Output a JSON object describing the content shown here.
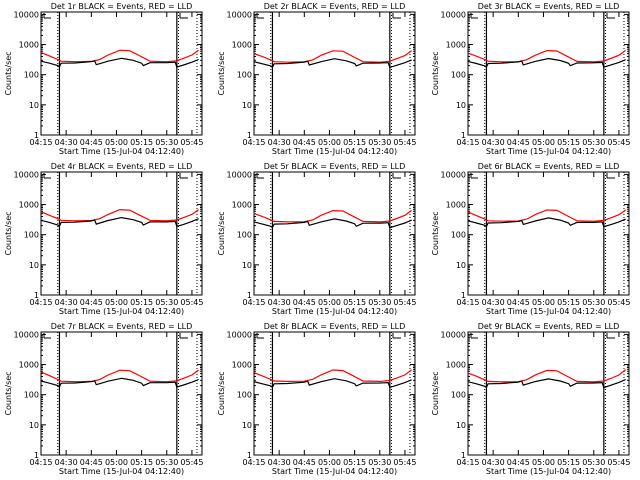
{
  "common": {
    "xlabel": "Start Time (15-Jul-04 04:12:40)",
    "ylabel": "Counts/sec",
    "xticks": [
      "04:15",
      "04:30",
      "04:45",
      "05:00",
      "05:15",
      "05:30",
      "05:45"
    ],
    "yticks": [
      "1",
      "10",
      "100",
      "1000",
      "10000"
    ],
    "colors": {
      "events": "#000000",
      "lld": "#ff0000"
    }
  },
  "chart_data": [
    {
      "type": "line",
      "title": "Det 1r BLACK = Events, RED = LLD",
      "xlim": [
        "04:15",
        "05:51"
      ],
      "ylim": [
        1,
        12000
      ],
      "yscale": "log",
      "markers": {
        "solid": [
          "04:26",
          "05:36"
        ],
        "dotted": [
          "04:25",
          "05:37",
          "05:48"
        ]
      },
      "series": [
        {
          "name": "LLD",
          "color": "#ff0000",
          "x": [
            "04:15",
            "04:20",
            "04:25",
            "04:27",
            "04:35",
            "04:45",
            "04:50",
            "04:55",
            "05:02",
            "05:08",
            "05:14",
            "05:20",
            "05:30",
            "05:36",
            "05:40",
            "05:45",
            "05:49"
          ],
          "y": [
            550,
            420,
            320,
            280,
            270,
            275,
            320,
            450,
            650,
            620,
            420,
            280,
            270,
            290,
            350,
            450,
            650
          ]
        },
        {
          "name": "Events",
          "color": "#000000",
          "x": [
            "04:15",
            "04:20",
            "04:25",
            "04:26",
            "04:27",
            "04:35",
            "04:45",
            "04:47",
            "04:48",
            "04:55",
            "05:03",
            "05:10",
            "05:15",
            "05:16",
            "05:20",
            "05:30",
            "05:35",
            "05:36",
            "05:40",
            "05:45",
            "05:49"
          ],
          "y": [
            280,
            240,
            200,
            180,
            240,
            245,
            270,
            290,
            215,
            280,
            350,
            300,
            240,
            200,
            250,
            250,
            260,
            180,
            210,
            260,
            320
          ]
        }
      ]
    },
    {
      "type": "line",
      "title": "Det 2r BLACK = Events, RED = LLD",
      "xlim": [
        "04:15",
        "05:51"
      ],
      "ylim": [
        1,
        12000
      ],
      "yscale": "log",
      "markers": {
        "solid": [
          "04:26",
          "05:36"
        ],
        "dotted": [
          "04:25",
          "05:37",
          "05:48"
        ]
      },
      "series": [
        {
          "name": "LLD",
          "color": "#ff0000",
          "x": [
            "04:15",
            "04:20",
            "04:25",
            "04:27",
            "04:35",
            "04:45",
            "04:50",
            "04:55",
            "05:02",
            "05:08",
            "05:14",
            "05:20",
            "05:30",
            "05:36",
            "05:40",
            "05:45",
            "05:49"
          ],
          "y": [
            500,
            400,
            310,
            270,
            260,
            270,
            310,
            440,
            620,
            600,
            400,
            270,
            260,
            280,
            340,
            430,
            620
          ]
        },
        {
          "name": "Events",
          "color": "#000000",
          "x": [
            "04:15",
            "04:20",
            "04:25",
            "04:26",
            "04:27",
            "04:35",
            "04:45",
            "04:47",
            "04:48",
            "04:55",
            "05:03",
            "05:10",
            "05:15",
            "05:16",
            "05:20",
            "05:30",
            "05:35",
            "05:36",
            "05:40",
            "05:45",
            "05:49"
          ],
          "y": [
            270,
            230,
            195,
            175,
            230,
            235,
            260,
            280,
            210,
            270,
            340,
            290,
            235,
            195,
            240,
            245,
            250,
            175,
            205,
            250,
            310
          ]
        }
      ]
    },
    {
      "type": "line",
      "title": "Det 3r BLACK = Events, RED = LLD",
      "xlim": [
        "04:15",
        "05:51"
      ],
      "ylim": [
        1,
        12000
      ],
      "yscale": "log",
      "markers": {
        "solid": [
          "04:26",
          "05:36"
        ],
        "dotted": [
          "04:25",
          "05:37",
          "05:48"
        ]
      },
      "series": [
        {
          "name": "LLD",
          "color": "#ff0000",
          "x": [
            "04:15",
            "04:20",
            "04:25",
            "04:27",
            "04:35",
            "04:45",
            "04:50",
            "04:55",
            "05:02",
            "05:08",
            "05:14",
            "05:20",
            "05:30",
            "05:36",
            "05:40",
            "05:45",
            "05:49"
          ],
          "y": [
            520,
            410,
            320,
            280,
            265,
            270,
            315,
            440,
            630,
            610,
            410,
            275,
            265,
            285,
            345,
            440,
            640
          ]
        },
        {
          "name": "Events",
          "color": "#000000",
          "x": [
            "04:15",
            "04:20",
            "04:25",
            "04:26",
            "04:27",
            "04:35",
            "04:45",
            "04:47",
            "04:48",
            "04:55",
            "05:03",
            "05:10",
            "05:15",
            "05:16",
            "05:20",
            "05:30",
            "05:35",
            "05:36",
            "05:40",
            "05:45",
            "05:49"
          ],
          "y": [
            275,
            235,
            195,
            178,
            235,
            240,
            265,
            285,
            212,
            275,
            345,
            295,
            238,
            198,
            245,
            248,
            255,
            178,
            208,
            255,
            315
          ]
        }
      ]
    },
    {
      "type": "line",
      "title": "Det 4r BLACK = Events, RED = LLD",
      "xlim": [
        "04:15",
        "05:51"
      ],
      "ylim": [
        1,
        12000
      ],
      "yscale": "log",
      "markers": {
        "solid": [
          "04:26",
          "05:36"
        ],
        "dotted": [
          "04:25",
          "05:37",
          "05:48"
        ]
      },
      "series": [
        {
          "name": "LLD",
          "color": "#ff0000",
          "x": [
            "04:15",
            "04:20",
            "04:25",
            "04:27",
            "04:35",
            "04:45",
            "04:50",
            "04:55",
            "05:02",
            "05:08",
            "05:14",
            "05:20",
            "05:30",
            "05:36",
            "05:40",
            "05:45",
            "05:49"
          ],
          "y": [
            580,
            440,
            340,
            300,
            290,
            295,
            340,
            470,
            680,
            650,
            440,
            300,
            290,
            310,
            370,
            470,
            680
          ]
        },
        {
          "name": "Events",
          "color": "#000000",
          "x": [
            "04:15",
            "04:20",
            "04:25",
            "04:26",
            "04:27",
            "04:35",
            "04:45",
            "04:47",
            "04:48",
            "04:55",
            "05:03",
            "05:10",
            "05:15",
            "05:16",
            "05:20",
            "05:30",
            "05:35",
            "05:36",
            "05:40",
            "05:45",
            "05:49"
          ],
          "y": [
            300,
            255,
            210,
            190,
            255,
            260,
            285,
            305,
            225,
            295,
            370,
            315,
            255,
            210,
            265,
            265,
            275,
            190,
            220,
            275,
            340
          ]
        }
      ]
    },
    {
      "type": "line",
      "title": "Det 5r BLACK = Events, RED = LLD",
      "xlim": [
        "04:15",
        "05:51"
      ],
      "ylim": [
        1,
        12000
      ],
      "yscale": "log",
      "markers": {
        "solid": [
          "04:26",
          "05:36"
        ],
        "dotted": [
          "04:25",
          "05:37",
          "05:48"
        ]
      },
      "series": [
        {
          "name": "LLD",
          "color": "#ff0000",
          "x": [
            "04:15",
            "04:20",
            "04:25",
            "04:27",
            "04:35",
            "04:45",
            "04:50",
            "04:55",
            "05:02",
            "05:08",
            "05:14",
            "05:20",
            "05:30",
            "05:36",
            "05:40",
            "05:45",
            "05:49"
          ],
          "y": [
            510,
            400,
            310,
            275,
            265,
            270,
            310,
            440,
            630,
            610,
            410,
            275,
            265,
            285,
            345,
            440,
            640
          ]
        },
        {
          "name": "Events",
          "color": "#000000",
          "x": [
            "04:15",
            "04:20",
            "04:25",
            "04:26",
            "04:27",
            "04:35",
            "04:45",
            "04:47",
            "04:48",
            "04:55",
            "05:03",
            "05:10",
            "05:15",
            "05:16",
            "05:20",
            "05:30",
            "05:35",
            "05:36",
            "05:40",
            "05:45",
            "05:49"
          ],
          "y": [
            265,
            225,
            190,
            170,
            225,
            230,
            255,
            275,
            205,
            265,
            335,
            285,
            230,
            190,
            240,
            240,
            250,
            170,
            200,
            245,
            305
          ]
        }
      ]
    },
    {
      "type": "line",
      "title": "Det 6r BLACK = Events, RED = LLD",
      "xlim": [
        "04:15",
        "05:51"
      ],
      "ylim": [
        1,
        12000
      ],
      "yscale": "log",
      "markers": {
        "solid": [
          "04:26",
          "05:36"
        ],
        "dotted": [
          "04:25",
          "05:37",
          "05:48"
        ]
      },
      "series": [
        {
          "name": "LLD",
          "color": "#ff0000",
          "x": [
            "04:15",
            "04:20",
            "04:25",
            "04:27",
            "04:35",
            "04:45",
            "04:50",
            "04:55",
            "05:02",
            "05:08",
            "05:14",
            "05:20",
            "05:30",
            "05:36",
            "05:40",
            "05:45",
            "05:49"
          ],
          "y": [
            560,
            430,
            330,
            290,
            280,
            285,
            330,
            460,
            660,
            640,
            430,
            290,
            280,
            300,
            360,
            460,
            660
          ]
        },
        {
          "name": "Events",
          "color": "#000000",
          "x": [
            "04:15",
            "04:20",
            "04:25",
            "04:26",
            "04:27",
            "04:35",
            "04:45",
            "04:47",
            "04:48",
            "04:55",
            "05:03",
            "05:10",
            "05:15",
            "05:16",
            "05:20",
            "05:30",
            "05:35",
            "05:36",
            "05:40",
            "05:45",
            "05:49"
          ],
          "y": [
            290,
            245,
            205,
            185,
            245,
            250,
            275,
            295,
            220,
            285,
            360,
            305,
            245,
            205,
            255,
            255,
            265,
            185,
            215,
            265,
            330
          ]
        }
      ]
    },
    {
      "type": "line",
      "title": "Det 7r BLACK = Events, RED = LLD",
      "xlim": [
        "04:15",
        "05:51"
      ],
      "ylim": [
        1,
        12000
      ],
      "yscale": "log",
      "markers": {
        "solid": [
          "04:26",
          "05:36"
        ],
        "dotted": [
          "04:25",
          "05:37",
          "05:48"
        ]
      },
      "series": [
        {
          "name": "LLD",
          "color": "#ff0000",
          "x": [
            "04:15",
            "04:20",
            "04:25",
            "04:27",
            "04:35",
            "04:45",
            "04:50",
            "04:55",
            "05:02",
            "05:08",
            "05:14",
            "05:20",
            "05:30",
            "05:36",
            "05:40",
            "05:45",
            "05:49"
          ],
          "y": [
            560,
            430,
            320,
            280,
            270,
            275,
            320,
            450,
            650,
            620,
            420,
            280,
            270,
            290,
            350,
            450,
            660
          ]
        },
        {
          "name": "Events",
          "color": "#000000",
          "x": [
            "04:15",
            "04:20",
            "04:25",
            "04:26",
            "04:27",
            "04:35",
            "04:45",
            "04:47",
            "04:48",
            "04:55",
            "05:03",
            "05:10",
            "05:15",
            "05:16",
            "05:20",
            "05:30",
            "05:35",
            "05:36",
            "05:40",
            "05:45",
            "05:49"
          ],
          "y": [
            285,
            240,
            200,
            180,
            240,
            245,
            270,
            290,
            215,
            280,
            350,
            300,
            240,
            200,
            250,
            250,
            260,
            180,
            210,
            260,
            320
          ]
        }
      ]
    },
    {
      "type": "line",
      "title": "Det 8r BLACK = Events, RED = LLD",
      "xlim": [
        "04:15",
        "05:51"
      ],
      "ylim": [
        1,
        12000
      ],
      "yscale": "log",
      "markers": {
        "solid": [
          "04:26",
          "05:36"
        ],
        "dotted": [
          "04:25",
          "05:37",
          "05:48"
        ]
      },
      "series": [
        {
          "name": "LLD",
          "color": "#ff0000",
          "x": [
            "04:15",
            "04:20",
            "04:25",
            "04:27",
            "04:35",
            "04:45",
            "04:50",
            "04:55",
            "05:02",
            "05:08",
            "05:14",
            "05:20",
            "05:30",
            "05:36",
            "05:40",
            "05:45",
            "05:49"
          ],
          "y": [
            540,
            420,
            320,
            285,
            275,
            280,
            325,
            455,
            660,
            630,
            425,
            285,
            275,
            295,
            355,
            455,
            670
          ]
        },
        {
          "name": "Events",
          "color": "#000000",
          "x": [
            "04:15",
            "04:20",
            "04:25",
            "04:26",
            "04:27",
            "04:35",
            "04:45",
            "04:47",
            "04:48",
            "04:55",
            "05:03",
            "05:10",
            "05:15",
            "05:16",
            "05:20",
            "05:30",
            "05:35",
            "05:36",
            "05:40",
            "05:45",
            "05:49"
          ],
          "y": [
            270,
            230,
            195,
            175,
            230,
            235,
            260,
            280,
            208,
            270,
            340,
            290,
            232,
            195,
            242,
            245,
            252,
            175,
            205,
            252,
            312
          ]
        }
      ]
    },
    {
      "type": "line",
      "title": "Det 9r BLACK = Events, RED = LLD",
      "xlim": [
        "04:15",
        "05:51"
      ],
      "ylim": [
        1,
        12000
      ],
      "yscale": "log",
      "markers": {
        "solid": [
          "04:26",
          "05:36"
        ],
        "dotted": [
          "04:25",
          "05:37",
          "05:48"
        ]
      },
      "series": [
        {
          "name": "LLD",
          "color": "#ff0000",
          "x": [
            "04:15",
            "04:20",
            "04:25",
            "04:27",
            "04:35",
            "04:45",
            "04:50",
            "04:55",
            "05:02",
            "05:08",
            "05:14",
            "05:20",
            "05:30",
            "05:36",
            "05:40",
            "05:45",
            "05:49"
          ],
          "y": [
            520,
            410,
            310,
            275,
            265,
            270,
            315,
            445,
            640,
            620,
            415,
            275,
            265,
            285,
            345,
            450,
            680
          ]
        },
        {
          "name": "Events",
          "color": "#000000",
          "x": [
            "04:15",
            "04:20",
            "04:25",
            "04:26",
            "04:27",
            "04:35",
            "04:45",
            "04:47",
            "04:48",
            "04:55",
            "05:03",
            "05:10",
            "05:15",
            "05:16",
            "05:20",
            "05:30",
            "05:35",
            "05:36",
            "05:40",
            "05:45",
            "05:49"
          ],
          "y": [
            270,
            230,
            190,
            172,
            230,
            235,
            262,
            282,
            208,
            272,
            335,
            285,
            232,
            192,
            242,
            245,
            252,
            172,
            205,
            255,
            320
          ]
        }
      ]
    }
  ]
}
